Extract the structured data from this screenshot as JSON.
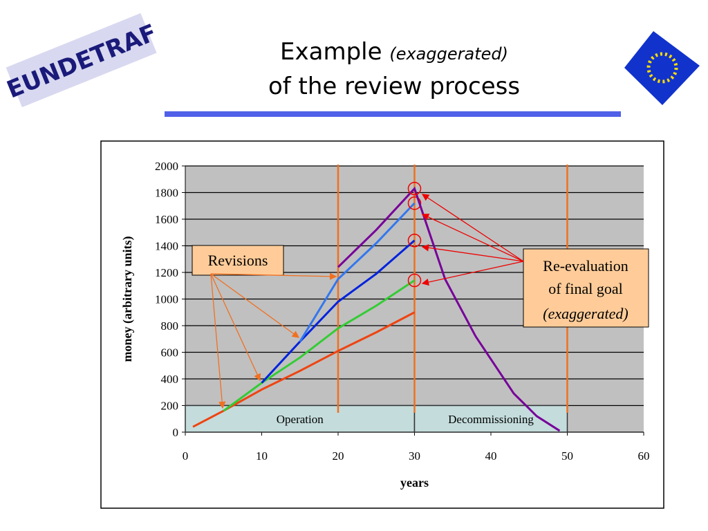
{
  "header": {
    "logo": "EUNDETRAF",
    "title_main": "Example",
    "title_note": "(exaggerated)",
    "title_line2": "of the review process"
  },
  "chart_data": {
    "type": "line",
    "xlabel": "years",
    "ylabel": "money (arbitrary units)",
    "xlim": [
      0,
      60
    ],
    "xticks": [
      0,
      10,
      20,
      30,
      40,
      50,
      60
    ],
    "ylim": [
      0,
      2000
    ],
    "yticks": [
      0,
      200,
      400,
      600,
      800,
      1000,
      1200,
      1400,
      1600,
      1800,
      2000
    ],
    "grid": true,
    "series": [
      {
        "color": "#ee4411",
        "x": [
          1,
          5,
          10,
          15,
          20,
          25,
          30
        ],
        "values": [
          40,
          160,
          320,
          460,
          610,
          750,
          900
        ]
      },
      {
        "color": "#33cc33",
        "x": [
          5,
          10,
          15,
          20,
          25,
          30
        ],
        "values": [
          160,
          370,
          560,
          780,
          950,
          1140
        ]
      },
      {
        "color": "#0022dd",
        "x": [
          10,
          15,
          20,
          25,
          30
        ],
        "values": [
          370,
          680,
          980,
          1190,
          1440
        ]
      },
      {
        "color": "#3377ee",
        "x": [
          15,
          20,
          25,
          30
        ],
        "values": [
          680,
          1150,
          1420,
          1720
        ]
      },
      {
        "color": "#770099",
        "x": [
          20,
          25,
          30,
          34,
          38,
          43,
          46,
          49
        ],
        "values": [
          1240,
          1520,
          1830,
          1150,
          720,
          290,
          120,
          10
        ]
      }
    ],
    "revision_x": [
      20,
      30,
      50
    ],
    "phases": [
      {
        "label": "Operation",
        "start": 0,
        "end": 30,
        "height": 200
      },
      {
        "label": "Decommissioning",
        "start": 30,
        "end": 50,
        "height": 200
      }
    ],
    "annotations": {
      "revisions": "Revisions",
      "reevaluation": [
        "Re-evaluation",
        "of final goal",
        "(exaggerated)"
      ]
    }
  }
}
